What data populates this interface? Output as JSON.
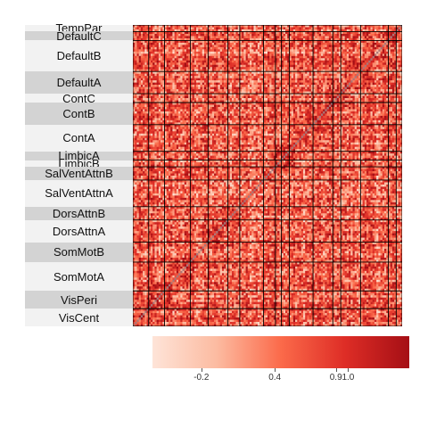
{
  "chart_data": {
    "type": "heatmap",
    "title": "",
    "xlabel": "",
    "ylabel": "",
    "networks_top_to_bottom": [
      {
        "name": "TempPar",
        "rows": 3
      },
      {
        "name": "DefaultC",
        "rows": 4
      },
      {
        "name": "DefaultB",
        "rows": 14
      },
      {
        "name": "DefaultA",
        "rows": 10
      },
      {
        "name": "ContC",
        "rows": 4
      },
      {
        "name": "ContB",
        "rows": 10
      },
      {
        "name": "ContA",
        "rows": 12
      },
      {
        "name": "LimbicA",
        "rows": 4
      },
      {
        "name": "LimbicB",
        "rows": 3
      },
      {
        "name": "SalVentAttnB",
        "rows": 6
      },
      {
        "name": "SalVentAttnA",
        "rows": 12
      },
      {
        "name": "DorsAttnB",
        "rows": 6
      },
      {
        "name": "DorsAttnA",
        "rows": 10
      },
      {
        "name": "SomMotB",
        "rows": 9
      },
      {
        "name": "SomMotA",
        "rows": 13
      },
      {
        "name": "VisPeri",
        "rows": 8
      },
      {
        "name": "VisCent",
        "rows": 8
      }
    ],
    "colorbar": {
      "min": -0.6,
      "max": 1.5,
      "tick_labels": [
        "-0.2",
        "0.4",
        "0.9",
        "1.0"
      ],
      "tick_values": [
        -0.2,
        0.4,
        0.9,
        1.0
      ],
      "colors": [
        "#fee4d8",
        "#fcbba1",
        "#fb6a4a",
        "#de2d26",
        "#a50f15"
      ]
    },
    "diagonal_color": "#aa7777",
    "block_border_color": "#000000",
    "value_range_estimate": [
      -0.3,
      1.0
    ]
  }
}
